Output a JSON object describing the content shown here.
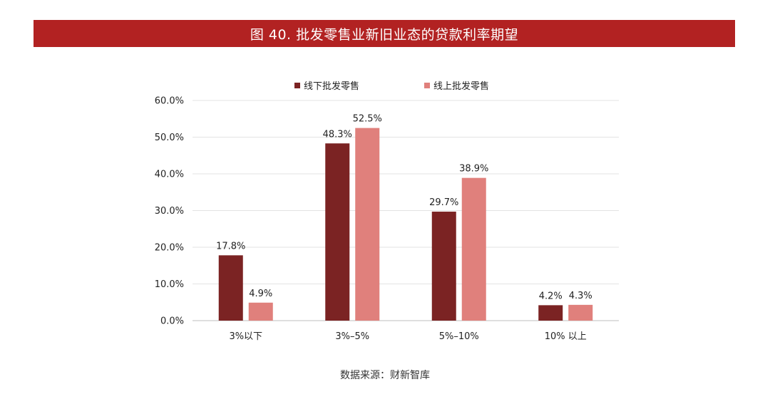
{
  "header": {
    "title": "图 40. 批发零售业新旧业态的贷款利率期望",
    "bar_color": "#b22222"
  },
  "source": {
    "text": "数据来源：财新智库"
  },
  "chart_data": {
    "type": "bar",
    "title": "图 40. 批发零售业新旧业态的贷款利率期望",
    "xlabel": "",
    "ylabel": "",
    "categories": [
      "3%以下",
      "3%–5%",
      "5%–10%",
      "10% 以上"
    ],
    "series": [
      {
        "name": "线下批发零售",
        "values": [
          17.8,
          48.3,
          29.7,
          4.2
        ],
        "color": "#7b2323"
      },
      {
        "name": "线上批发零售",
        "values": [
          4.9,
          52.5,
          38.9,
          4.3
        ],
        "color": "#e0807c"
      }
    ],
    "ylim": [
      0,
      60
    ],
    "yticks": [
      0,
      10,
      20,
      30,
      40,
      50,
      60
    ],
    "ytick_labels": [
      "0.0%",
      "10.0%",
      "20.0%",
      "30.0%",
      "40.0%",
      "50.0%",
      "60.0%"
    ],
    "value_labels": [
      [
        "17.8%",
        "48.3%",
        "29.7%",
        "4.2%"
      ],
      [
        "4.9%",
        "52.5%",
        "38.9%",
        "4.3%"
      ]
    ],
    "grid": true,
    "gridline_color": "#e3e3e3",
    "legend_position": "top-center"
  }
}
